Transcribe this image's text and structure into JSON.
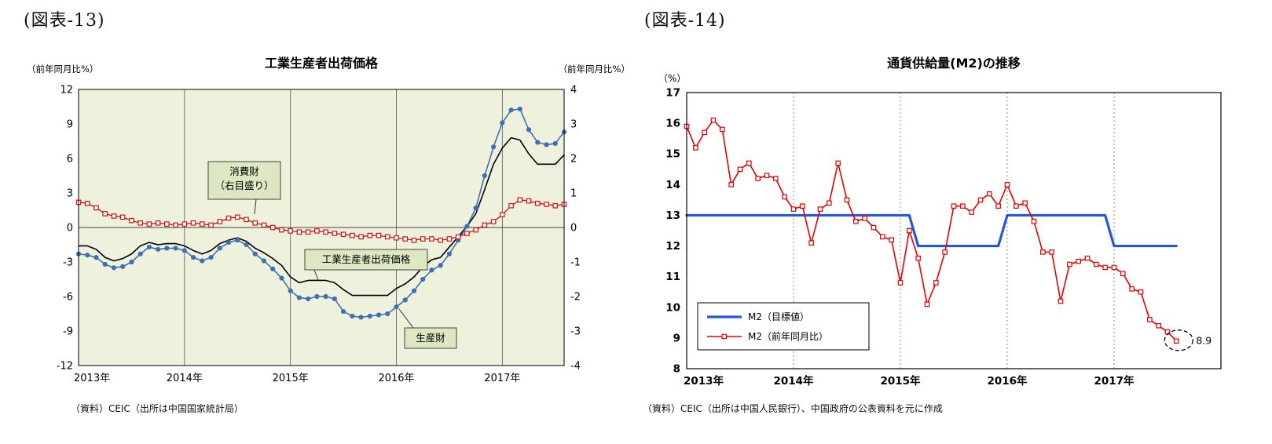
{
  "figure_13": {
    "label": "(図表-13)",
    "source": "（資料）CEIC（出所は中国国家統計局）"
  },
  "figure_14": {
    "label": "(図表-14)",
    "source": "（資料）CEIC（出所は中国人民銀行）、中国政府の公表資料を元に作成"
  },
  "chart_data": [
    {
      "id": "ppi-chart",
      "type": "line",
      "title": "工業生産者出荷価格",
      "left_axis_label": "（前年同月比%）",
      "right_axis_label": "（前年同月比%）",
      "x_start": "2013-01",
      "x_interval": "monthly",
      "x_labels": [
        "2013年",
        "2014年",
        "2015年",
        "2016年",
        "2017年"
      ],
      "x_label_months": [
        0,
        12,
        24,
        36,
        48
      ],
      "year_gridline_months": [
        12,
        24,
        36,
        48
      ],
      "left_ylim": [
        -12,
        12
      ],
      "left_ytick_step": 3,
      "right_ylim": [
        -4,
        4
      ],
      "right_ytick_step": 1,
      "plot_bg": "#eef2dd",
      "callout_bg": "#dde7c2",
      "series": [
        {
          "id": "ppi-total",
          "name": "工業生産者出荷価格",
          "axis": "left",
          "color": "#000000",
          "marker": "none",
          "width": 1.6,
          "values": [
            -1.6,
            -1.6,
            -1.9,
            -2.6,
            -2.9,
            -2.7,
            -2.3,
            -1.6,
            -1.3,
            -1.5,
            -1.4,
            -1.4,
            -1.6,
            -2.0,
            -2.3,
            -2.0,
            -1.4,
            -1.1,
            -0.9,
            -1.2,
            -1.8,
            -2.2,
            -2.7,
            -3.3,
            -4.3,
            -4.8,
            -4.6,
            -4.6,
            -4.6,
            -4.8,
            -5.4,
            -5.9,
            -5.9,
            -5.9,
            -5.9,
            -5.9,
            -5.3,
            -4.9,
            -4.3,
            -3.4,
            -2.8,
            -2.6,
            -1.7,
            -0.8,
            0.1,
            1.2,
            3.3,
            5.5,
            6.9,
            7.8,
            7.6,
            6.4,
            5.5,
            5.5,
            5.5,
            6.3
          ]
        },
        {
          "id": "producer-goods",
          "name": "生産財",
          "axis": "left",
          "color": "#3f6fb5",
          "marker": "circle",
          "width": 1.6,
          "values": [
            -2.3,
            -2.4,
            -2.6,
            -3.2,
            -3.5,
            -3.4,
            -3.0,
            -2.3,
            -1.7,
            -1.9,
            -1.8,
            -1.8,
            -2.0,
            -2.6,
            -2.9,
            -2.6,
            -1.8,
            -1.3,
            -1.1,
            -1.5,
            -2.3,
            -2.9,
            -3.6,
            -4.4,
            -5.5,
            -6.1,
            -6.2,
            -6.0,
            -6.0,
            -6.2,
            -7.3,
            -7.7,
            -7.8,
            -7.7,
            -7.6,
            -7.5,
            -6.9,
            -6.3,
            -5.5,
            -4.5,
            -3.7,
            -3.3,
            -2.3,
            -1.1,
            0.1,
            1.7,
            4.5,
            7.0,
            9.1,
            10.2,
            10.3,
            8.5,
            7.4,
            7.2,
            7.3,
            8.3
          ]
        },
        {
          "id": "consumer-goods",
          "name": "消費財（右目盛り）",
          "axis": "right",
          "color": "#d11111",
          "marker": "square-open",
          "width": 1.3,
          "values": [
            0.73,
            0.7,
            0.57,
            0.4,
            0.33,
            0.3,
            0.2,
            0.13,
            0.1,
            0.13,
            0.1,
            0.07,
            0.1,
            0.13,
            0.1,
            0.07,
            0.17,
            0.27,
            0.3,
            0.23,
            0.13,
            0.07,
            0.0,
            -0.07,
            -0.1,
            -0.13,
            -0.13,
            -0.1,
            -0.13,
            -0.17,
            -0.2,
            -0.23,
            -0.27,
            -0.23,
            -0.23,
            -0.27,
            -0.3,
            -0.33,
            -0.37,
            -0.33,
            -0.33,
            -0.37,
            -0.33,
            -0.27,
            -0.17,
            -0.07,
            0.07,
            0.17,
            0.37,
            0.63,
            0.8,
            0.77,
            0.7,
            0.67,
            0.63,
            0.67
          ]
        }
      ],
      "callouts": [
        {
          "id": "consumer-goods",
          "lines": [
            "消費財",
            "（右目盛り）"
          ]
        },
        {
          "id": "ppi-total",
          "lines": [
            "工業生産者出荷価格"
          ]
        },
        {
          "id": "producer-goods",
          "lines": [
            "生産財"
          ]
        }
      ]
    },
    {
      "id": "m2-chart",
      "type": "line",
      "title": "通貨供給量(M2)の推移",
      "unit_label": "（%）",
      "x_start": "2013-01",
      "x_interval": "monthly",
      "x_labels": [
        "2013年",
        "2014年",
        "2015年",
        "2016年",
        "2017年"
      ],
      "x_label_months": [
        0,
        12,
        24,
        36,
        48
      ],
      "year_gridline_months": [
        12,
        24,
        36,
        48
      ],
      "ylim": [
        8,
        17
      ],
      "ytick_step": 1,
      "plot_bg": "#ffffff",
      "series": [
        {
          "id": "m2-target",
          "name": "M2（目標値）",
          "color": "#2457e0",
          "marker": "none",
          "width": 3.2,
          "values": [
            13,
            13,
            13,
            13,
            13,
            13,
            13,
            13,
            13,
            13,
            13,
            13,
            13,
            13,
            13,
            13,
            13,
            13,
            13,
            13,
            13,
            13,
            13,
            13,
            13,
            13,
            12,
            12,
            12,
            12,
            12,
            12,
            12,
            12,
            12,
            12,
            13,
            13,
            13,
            13,
            13,
            13,
            13,
            13,
            13,
            13,
            13,
            13,
            12,
            12,
            12,
            12,
            12,
            12,
            12,
            12
          ]
        },
        {
          "id": "m2-yoy",
          "name": "M2（前年同月比）",
          "color": "#e60000",
          "marker": "square-open",
          "width": 1.6,
          "values": [
            15.9,
            15.2,
            15.7,
            16.1,
            15.8,
            14.0,
            14.5,
            14.7,
            14.2,
            14.3,
            14.2,
            13.6,
            13.2,
            13.3,
            12.1,
            13.2,
            13.4,
            14.7,
            13.5,
            12.8,
            12.9,
            12.6,
            12.3,
            12.2,
            10.8,
            12.5,
            11.6,
            10.1,
            10.8,
            11.8,
            13.3,
            13.3,
            13.1,
            13.5,
            13.7,
            13.3,
            14.0,
            13.3,
            13.4,
            12.8,
            11.8,
            11.8,
            10.2,
            11.4,
            11.5,
            11.6,
            11.4,
            11.3,
            11.3,
            11.1,
            10.6,
            10.5,
            9.6,
            9.4,
            9.2,
            8.9
          ]
        }
      ],
      "legend": [
        "M2（目標値）",
        "M2（前年同月比）"
      ],
      "annotation": {
        "text": "8.9",
        "series": "M2（前年同月比）",
        "index": 55,
        "value": 8.9
      }
    }
  ]
}
